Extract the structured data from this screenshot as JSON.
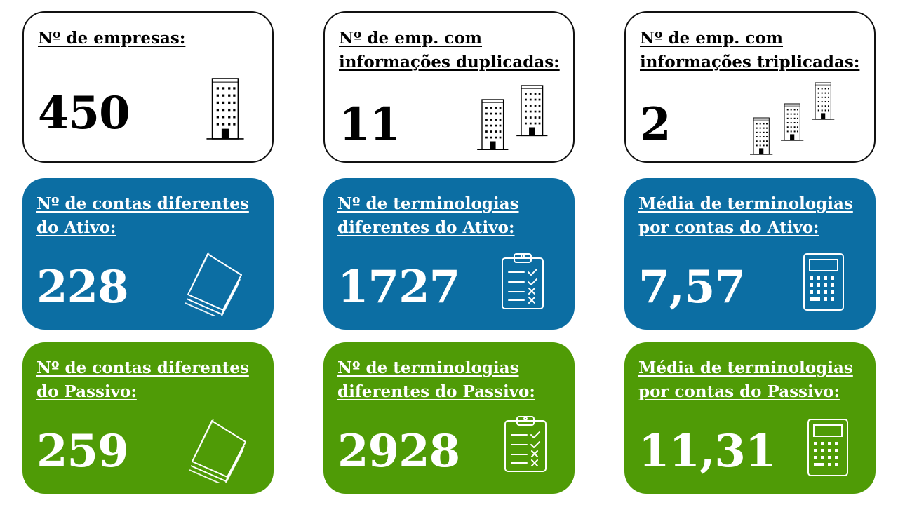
{
  "cards": [
    {
      "title": "Nº de empresas:",
      "value": "450",
      "icon": "building-icon"
    },
    {
      "title": "Nº de emp. com informações duplicadas:",
      "value": "11",
      "icon": "two-buildings-icon"
    },
    {
      "title": "Nº de emp. com informações triplicadas:",
      "value": "2",
      "icon": "three-buildings-icon"
    },
    {
      "title": "Nº de contas diferentes do Ativo:",
      "value": "228",
      "icon": "paper-stack-icon"
    },
    {
      "title": "Nº de terminologias diferentes do Ativo:",
      "value": "1727",
      "icon": "clipboard-checklist-icon"
    },
    {
      "title": "Média de terminologias por contas do Ativo:",
      "value": "7,57",
      "icon": "calculator-icon"
    },
    {
      "title": "Nº de contas diferentes do Passivo:",
      "value": "259",
      "icon": "paper-stack-icon"
    },
    {
      "title": "Nº de terminologias diferentes do Passivo:",
      "value": "2928",
      "icon": "clipboard-checklist-icon"
    },
    {
      "title": "Média de terminologias por contas do Passivo:",
      "value": "11,31",
      "icon": "calculator-icon"
    }
  ],
  "colors": {
    "blue": "#0c6ea3",
    "green": "#4f9b06",
    "white": "#ffffff",
    "border": "#111111"
  }
}
